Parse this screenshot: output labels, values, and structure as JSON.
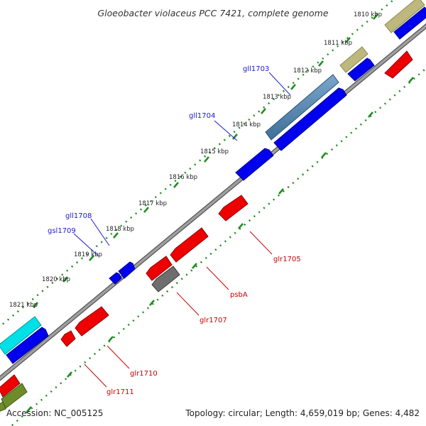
{
  "title": "Gloeobacter violaceus PCC 7421, complete genome",
  "footer": {
    "accession": "Accession: NC_005125",
    "summary": "Topology: circular; Length: 4,659,019 bp; Genes: 4,482"
  },
  "colors": {
    "backbone": "#8a8a8a",
    "backbone_edge": "#555555",
    "dotted": "#1e8c1e",
    "forward_gene": "#0000ee",
    "reverse_gene": "#ee0000",
    "forward_label": "#1a1acc",
    "reverse_label": "#cc0000"
  },
  "kbp_ticks": [
    "1810 kbp",
    "1811 kbp",
    "1812 kbp",
    "1813 kbp",
    "1814 kbp",
    "1815 kbp",
    "1816 kbp",
    "1817 kbp",
    "1818 kbp",
    "1819 kbp",
    "1820 kbp",
    "1821 kbp"
  ],
  "gene_labels": {
    "forward": [
      "gll1703",
      "gll1704",
      "gll1708",
      "gsl1709"
    ],
    "reverse": [
      "glr1705",
      "psbA",
      "glr1707",
      "glr1710",
      "glr1711"
    ]
  }
}
